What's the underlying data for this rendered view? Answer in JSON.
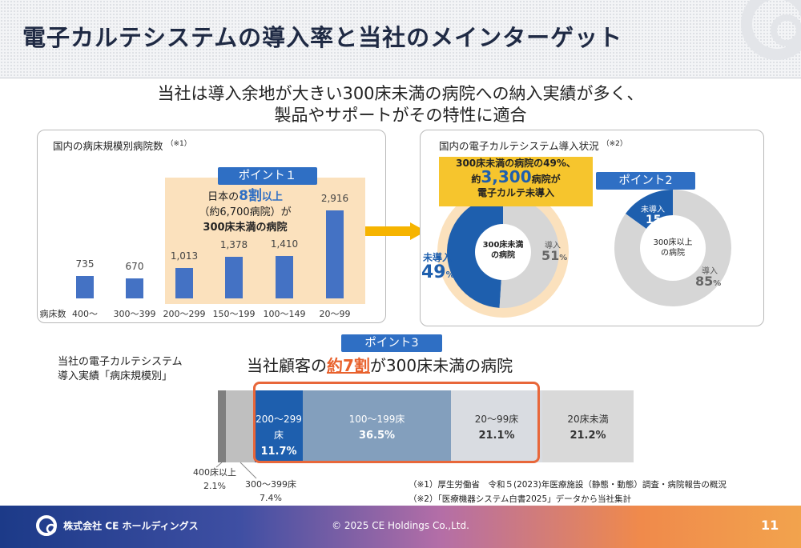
{
  "header": {
    "title": "電子カルテシステムの導入率と当社のメインターゲット"
  },
  "subtitle": {
    "line1": "当社は導入余地が大きい300床未満の病院への納入実績が多く、",
    "line2": "製品やサポートがその特性に適合"
  },
  "left_panel": {
    "title": "国内の病床規模別病院数",
    "note_ref": "（※1）",
    "badge": "ポイント１",
    "highlight": {
      "l1_a": "日本の",
      "l1_b": "8割",
      "l1_c": "以上",
      "l2": "（約6,700病院）が",
      "l3": "300床未満の病院"
    },
    "axis_label": "病床数"
  },
  "right_panel": {
    "title": "国内の電子カルテシステム導入状況",
    "note_ref": "（※2）",
    "callout": {
      "l1": "300床未満の病院の49%、",
      "l2_a": "約",
      "l2_b": "3,300",
      "l2_c": "病院が",
      "l3": "電子カルテ未導入"
    },
    "badge": "ポイント2",
    "donut1_center": "300床未満\nの病院",
    "donut1_l1": "未導入",
    "donut1_v1": "49",
    "donut1_l2": "導入",
    "donut1_v2": "51",
    "donut2_center": "300床以上\nの病院",
    "donut2_l1": "未導入",
    "donut2_v1": "15",
    "donut2_l2": "導入",
    "donut2_v2": "85",
    "pct": "%"
  },
  "bottom": {
    "left_label_l1": "当社の電子カルテシステム",
    "left_label_l2": "導入実績「病床規模別」",
    "badge": "ポイント3",
    "headline_a": "当社顧客の",
    "headline_b": "約7割",
    "headline_c": "が300床未満の病院"
  },
  "notes": {
    "n1": "（※1）厚生労働省　令和５(2023)年医療施設（静態・動態）調査・病院報告の概況",
    "n2": "（※2）「医療機器システム白書2025」データから当社集計"
  },
  "footer": {
    "company": "株式会社 CE ホールディングス",
    "copyright": "© 2025 CE Holdings Co.,Ltd.",
    "page": "11"
  },
  "colors": {
    "bar": "#4472c4",
    "dark_blue": "#1e5fae",
    "orange": "#f08a4b",
    "highlight": "#fbe1bd"
  },
  "chart_data": [
    {
      "type": "bar",
      "categories": [
        "400～",
        "300～399",
        "200～299",
        "150～199",
        "100～149",
        "20～99"
      ],
      "values": [
        735,
        670,
        1013,
        1378,
        1410,
        2916
      ],
      "value_labels": [
        "735",
        "670",
        "1,013",
        "1,378",
        "1,410",
        "2,916"
      ],
      "xlabel": "病床数",
      "ylim": [
        0,
        3200
      ]
    },
    {
      "type": "pie",
      "labels": [
        "未導入",
        "導入"
      ],
      "values": [
        49,
        51
      ],
      "colors": [
        "#1e5fae",
        "#d6d6d6"
      ]
    },
    {
      "type": "pie",
      "labels": [
        "未導入",
        "導入"
      ],
      "values": [
        15,
        85
      ],
      "colors": [
        "#1e5fae",
        "#d6d6d6"
      ]
    },
    {
      "type": "bar",
      "stacked": true,
      "orientation": "horizontal",
      "segments": [
        {
          "label": "400床以上",
          "value": 2.1,
          "display": "2.1%"
        },
        {
          "label": "300～399床",
          "value": 7.4,
          "display": "7.4%"
        },
        {
          "label": "200～299床",
          "value": 11.7,
          "display": "11.7%"
        },
        {
          "label": "100～199床",
          "value": 36.5,
          "display": "36.5%"
        },
        {
          "label": "20～99床",
          "value": 21.1,
          "display": "21.1%"
        },
        {
          "label": "20床未満",
          "value": 21.2,
          "display": "21.2%"
        }
      ]
    }
  ]
}
